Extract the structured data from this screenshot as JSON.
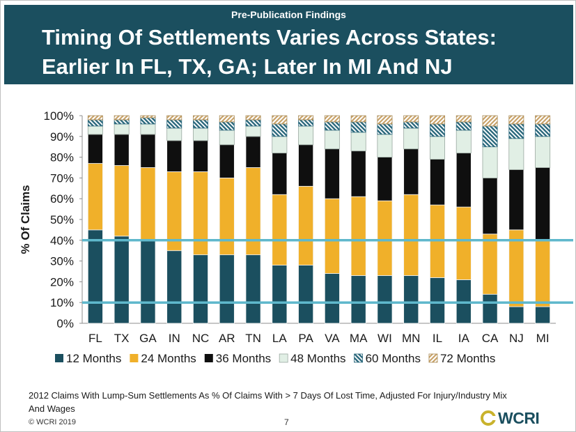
{
  "header": {
    "pre_label": "Pre-Publication Findings",
    "title_line1": "Timing Of Settlements Varies Across States:",
    "title_line2": "Earlier In FL, TX, GA; Later In MI And NJ"
  },
  "footer": {
    "footnote": "2012 Claims With Lump-Sum Settlements As % Of Claims With > 7 Days Of Lost Time, Adjusted For Injury/Industry Mix And Wages",
    "copyright": "© WCRI 2019",
    "page_number": "7",
    "logo_text": "WCRI"
  },
  "colors": {
    "header_bg": "#1b4f5f",
    "s12": "#1b4f5f",
    "s24": "#f0b02a",
    "s36": "#0f0f0f",
    "s48": "#e1efe5",
    "s60": "#2d6a7e",
    "s72": "#c9a36a",
    "reference_line": "#5fb8cc"
  },
  "chart_data": {
    "type": "bar",
    "stacked": true,
    "categories": [
      "FL",
      "TX",
      "GA",
      "IN",
      "NC",
      "AR",
      "TN",
      "LA",
      "PA",
      "VA",
      "MA",
      "WI",
      "MN",
      "IL",
      "IA",
      "CA",
      "NJ",
      "MI"
    ],
    "series": [
      {
        "name": "12 Months",
        "values": [
          45,
          42,
          40,
          35,
          33,
          33,
          33,
          28,
          28,
          24,
          23,
          23,
          23,
          22,
          21,
          14,
          8,
          8
        ]
      },
      {
        "name": "24 Months",
        "values": [
          32,
          34,
          35,
          38,
          40,
          37,
          42,
          34,
          38,
          36,
          38,
          36,
          39,
          35,
          35,
          29,
          37,
          32
        ]
      },
      {
        "name": "36 Months",
        "values": [
          14,
          15,
          16,
          15,
          15,
          16,
          15,
          20,
          20,
          24,
          22,
          21,
          22,
          22,
          26,
          27,
          29,
          35
        ]
      },
      {
        "name": "48 Months",
        "values": [
          4,
          5,
          5,
          6,
          6,
          7,
          5,
          8,
          9,
          9,
          9,
          11,
          10,
          11,
          11,
          15,
          15,
          15
        ]
      },
      {
        "name": "60 Months",
        "values": [
          3,
          2,
          3,
          4,
          4,
          4,
          3,
          6,
          3,
          4,
          5,
          5,
          3,
          6,
          4,
          10,
          7,
          6
        ]
      },
      {
        "name": "72 Months",
        "values": [
          2,
          2,
          1,
          2,
          2,
          3,
          2,
          4,
          2,
          3,
          3,
          4,
          3,
          4,
          3,
          5,
          4,
          4
        ]
      }
    ],
    "ylabel": "% Of Claims",
    "yticks": [
      "0%",
      "10%",
      "20%",
      "30%",
      "40%",
      "50%",
      "60%",
      "70%",
      "80%",
      "90%",
      "100%"
    ],
    "ylim": [
      0,
      100
    ],
    "reference_lines": [
      40,
      10
    ],
    "legend_position": "bottom",
    "grid": false
  }
}
